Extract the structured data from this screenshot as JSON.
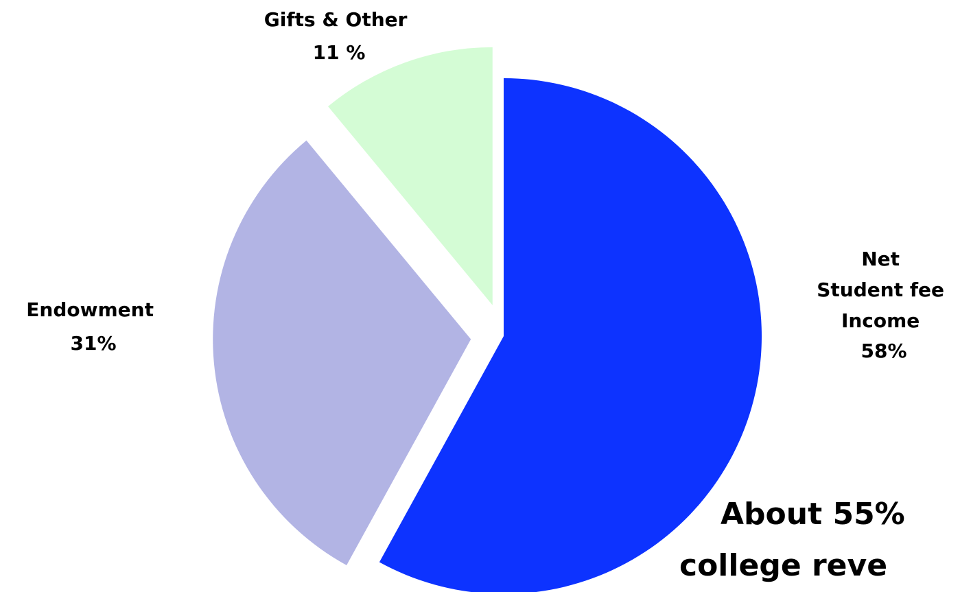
{
  "chart_data": {
    "type": "pie",
    "title": "",
    "slices": [
      {
        "name": "Net Student fee Income",
        "value": 58,
        "label_lines": [
          "Net",
          "Student fee",
          "Income",
          "58%"
        ],
        "color": "#0d33ff",
        "exploded": false
      },
      {
        "name": "Endowment",
        "value": 31,
        "label_lines": [
          "Endowment",
          "31%"
        ],
        "color": "#b2b4e4",
        "exploded": true
      },
      {
        "name": "Gifts & Other",
        "value": 11,
        "label_lines": [
          "Gifts & Other",
          "11 %"
        ],
        "color": "#d4fcd5",
        "exploded": true
      }
    ],
    "annotation_lines": [
      "About 55%",
      "college reve"
    ]
  }
}
